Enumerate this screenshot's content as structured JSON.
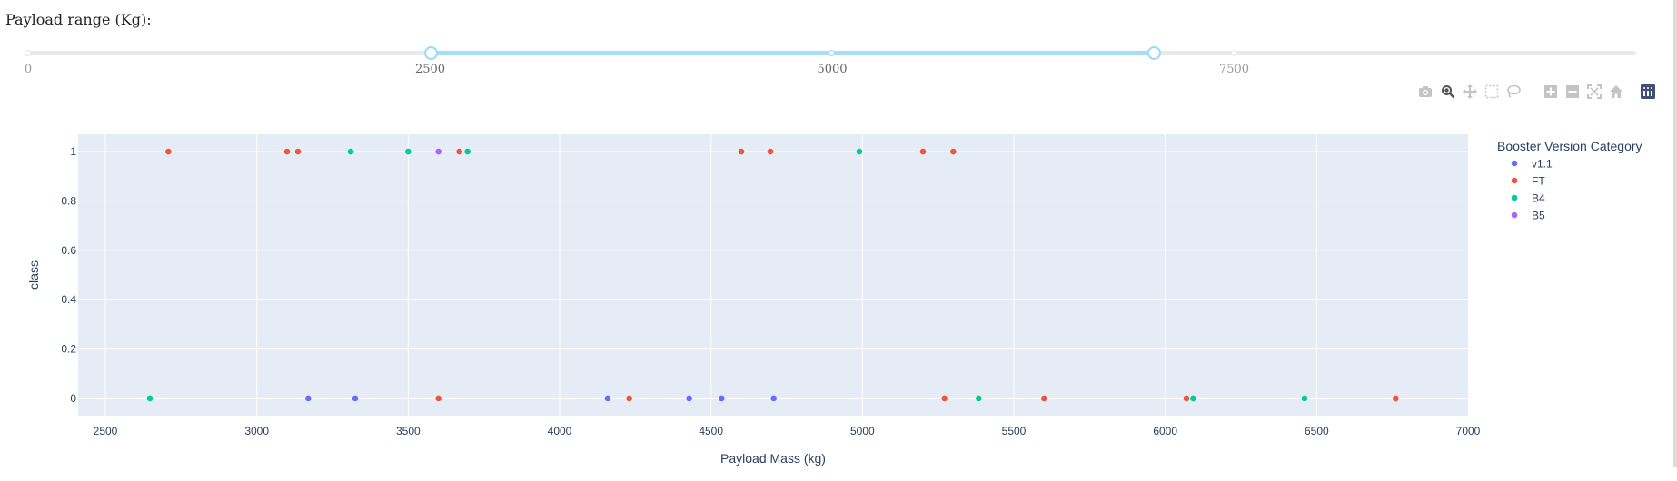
{
  "slider": {
    "title": "Payload range (Kg):",
    "min": 0,
    "max": 10000,
    "value": [
      2500,
      7000
    ],
    "marks": [
      {
        "label": "0",
        "value": 0
      },
      {
        "label": "2500",
        "value": 2500
      },
      {
        "label": "5000",
        "value": 5000
      },
      {
        "label": "7500",
        "value": 7500
      }
    ]
  },
  "modebar": {
    "buttons": [
      "camera-icon",
      "zoom-icon",
      "pan-icon",
      "box-select-icon",
      "lasso-select-icon",
      "zoom-in-icon",
      "zoom-out-icon",
      "autoscale-icon",
      "reset-axes-icon",
      "plotly-logo-icon"
    ]
  },
  "chart_data": {
    "type": "scatter",
    "title": "",
    "xlabel": "Payload Mass (kg)",
    "ylabel": "class",
    "xlim": [
      2410,
      7000
    ],
    "ylim": [
      -0.07,
      1.07
    ],
    "xticks": [
      2500,
      3000,
      3500,
      4000,
      4500,
      5000,
      5500,
      6000,
      6500,
      7000
    ],
    "yticks": [
      0,
      0.2,
      0.4,
      0.6,
      0.8,
      1
    ],
    "ytick_labels": [
      "0",
      "0.2",
      "0.4",
      "0.6",
      "0.8",
      "1"
    ],
    "grid": true,
    "legend_title": "Booster Version Category",
    "legend_position": "right",
    "series": [
      {
        "name": "v1.1",
        "color": "#636efa",
        "points": [
          [
            3170,
            0
          ],
          [
            3325,
            0
          ],
          [
            4159,
            0
          ],
          [
            4428,
            0
          ],
          [
            4535,
            0
          ],
          [
            4707,
            0
          ]
        ]
      },
      {
        "name": "FT",
        "color": "#ef553b",
        "points": [
          [
            2708,
            1
          ],
          [
            3100,
            1
          ],
          [
            3136,
            1
          ],
          [
            3669,
            1
          ],
          [
            4600,
            1
          ],
          [
            4696,
            1
          ],
          [
            5200,
            1
          ],
          [
            5300,
            1
          ],
          [
            3600,
            0
          ],
          [
            4230,
            0
          ],
          [
            5271,
            0
          ],
          [
            5600,
            0
          ],
          [
            6070,
            0
          ],
          [
            6761,
            0
          ]
        ]
      },
      {
        "name": "B4",
        "color": "#00cc96",
        "points": [
          [
            3310,
            1
          ],
          [
            3500,
            1
          ],
          [
            3696,
            1
          ],
          [
            4990,
            1
          ],
          [
            2647,
            0
          ],
          [
            5384,
            0
          ],
          [
            6092,
            0
          ],
          [
            6460,
            0
          ]
        ]
      },
      {
        "name": "B5",
        "color": "#ab63fa",
        "points": [
          [
            3600,
            1
          ]
        ]
      }
    ]
  }
}
